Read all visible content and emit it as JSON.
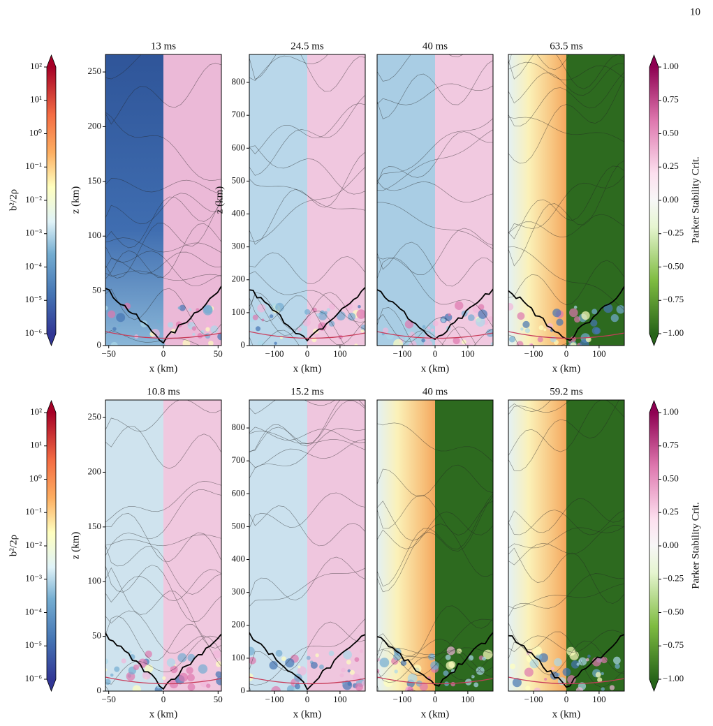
{
  "page_number": "10",
  "figure": {
    "rows": [
      {
        "colorbar_left": {
          "type": "colorbar",
          "label": "b²/2ρ",
          "scale": "log",
          "lim": [
            1e-06,
            100
          ],
          "ticks": [
            {
              "value": 1e-06,
              "label": "10⁻⁶"
            },
            {
              "value": 1e-05,
              "label": "10⁻⁵"
            },
            {
              "value": 0.0001,
              "label": "10⁻⁴"
            },
            {
              "value": 0.001,
              "label": "10⁻³"
            },
            {
              "value": 0.01,
              "label": "10⁻²"
            },
            {
              "value": 0.1,
              "label": "10⁻¹"
            },
            {
              "value": 1,
              "label": "10⁰"
            },
            {
              "value": 10,
              "label": "10¹"
            },
            {
              "value": 100,
              "label": "10²"
            }
          ]
        },
        "panels": [
          {
            "type": "heatmap",
            "title": "13 ms",
            "xlabel": "x (km)",
            "ylabel": "z (km)",
            "xlim": [
              -53,
              53
            ],
            "xticks": [
              {
                "value": -50,
                "label": "−50"
              },
              0,
              50
            ],
            "ylim": [
              0,
              266
            ],
            "yticks": [
              0,
              50,
              100,
              150,
              200,
              250
            ]
          },
          {
            "type": "heatmap",
            "title": "24.5 ms",
            "xlabel": "x (km)",
            "ylabel": "z (km)",
            "xlim": [
              -177,
              177
            ],
            "xticks": [
              {
                "value": -100,
                "label": "−100"
              },
              0,
              100
            ],
            "ylim": [
              0,
              885
            ],
            "yticks": [
              0,
              100,
              200,
              300,
              400,
              500,
              600,
              700,
              800
            ]
          },
          {
            "type": "heatmap",
            "title": "40 ms",
            "xlabel": "x (km)",
            "xlim": [
              -177,
              177
            ],
            "xticks": [
              {
                "value": -100,
                "label": "−100"
              },
              0,
              100
            ],
            "ylim": [
              0,
              885
            ]
          },
          {
            "type": "heatmap",
            "title": "63.5 ms",
            "xlabel": "x (km)",
            "xlim": [
              -177,
              177
            ],
            "xticks": [
              {
                "value": -100,
                "label": "−100"
              },
              0,
              100
            ],
            "ylim": [
              0,
              885
            ]
          }
        ],
        "colorbar_right": {
          "type": "colorbar",
          "label": "Parker Stability Crit.",
          "scale": "linear",
          "lim": [
            -1,
            1
          ],
          "ticks": [
            {
              "value": -1,
              "label": "−1.00"
            },
            {
              "value": -0.75,
              "label": "−0.75"
            },
            {
              "value": -0.5,
              "label": "−0.50"
            },
            {
              "value": -0.25,
              "label": "−0.25"
            },
            {
              "value": 0,
              "label": "0.00"
            },
            {
              "value": 0.25,
              "label": "0.25"
            },
            {
              "value": 0.5,
              "label": "0.50"
            },
            {
              "value": 0.75,
              "label": "0.75"
            },
            {
              "value": 1,
              "label": "1.00"
            }
          ]
        }
      },
      {
        "colorbar_left": {
          "type": "colorbar",
          "label": "b²/2ρ",
          "scale": "log",
          "lim": [
            1e-06,
            100
          ],
          "ticks": [
            {
              "value": 1e-06,
              "label": "10⁻⁶"
            },
            {
              "value": 1e-05,
              "label": "10⁻⁵"
            },
            {
              "value": 0.0001,
              "label": "10⁻⁴"
            },
            {
              "value": 0.001,
              "label": "10⁻³"
            },
            {
              "value": 0.01,
              "label": "10⁻²"
            },
            {
              "value": 0.1,
              "label": "10⁻¹"
            },
            {
              "value": 1,
              "label": "10⁰"
            },
            {
              "value": 10,
              "label": "10¹"
            },
            {
              "value": 100,
              "label": "10²"
            }
          ]
        },
        "panels": [
          {
            "type": "heatmap",
            "title": "10.8 ms",
            "xlabel": "x (km)",
            "ylabel": "z (km)",
            "xlim": [
              -53,
              53
            ],
            "xticks": [
              {
                "value": -50,
                "label": "−50"
              },
              0,
              50
            ],
            "ylim": [
              0,
              266
            ],
            "yticks": [
              0,
              50,
              100,
              150,
              200,
              250
            ]
          },
          {
            "type": "heatmap",
            "title": "15.2 ms",
            "xlabel": "x (km)",
            "xlim": [
              -177,
              177
            ],
            "xticks": [
              {
                "value": -100,
                "label": "−100"
              },
              0,
              100
            ],
            "ylim": [
              0,
              885
            ],
            "yticks": [
              0,
              100,
              200,
              300,
              400,
              500,
              600,
              700,
              800
            ]
          },
          {
            "type": "heatmap",
            "title": "40 ms",
            "xlabel": "x (km)",
            "xlim": [
              -177,
              177
            ],
            "xticks": [
              {
                "value": -100,
                "label": "−100"
              },
              0,
              100
            ],
            "ylim": [
              0,
              885
            ]
          },
          {
            "type": "heatmap",
            "title": "59.2 ms",
            "xlabel": "x (km)",
            "xlim": [
              -177,
              177
            ],
            "xticks": [
              {
                "value": -100,
                "label": "−100"
              },
              0,
              100
            ],
            "ylim": [
              0,
              885
            ]
          }
        ],
        "colorbar_right": {
          "type": "colorbar",
          "label": "Parker Stability Crit.",
          "scale": "linear",
          "lim": [
            -1,
            1
          ],
          "ticks": [
            {
              "value": -1,
              "label": "−1.00"
            },
            {
              "value": -0.75,
              "label": "−0.75"
            },
            {
              "value": -0.5,
              "label": "−0.50"
            },
            {
              "value": -0.25,
              "label": "−0.25"
            },
            {
              "value": 0,
              "label": "0.00"
            },
            {
              "value": 0.25,
              "label": "0.25"
            },
            {
              "value": 0.5,
              "label": "0.50"
            },
            {
              "value": 0.75,
              "label": "0.75"
            },
            {
              "value": 1,
              "label": "1.00"
            }
          ]
        }
      }
    ]
  }
}
